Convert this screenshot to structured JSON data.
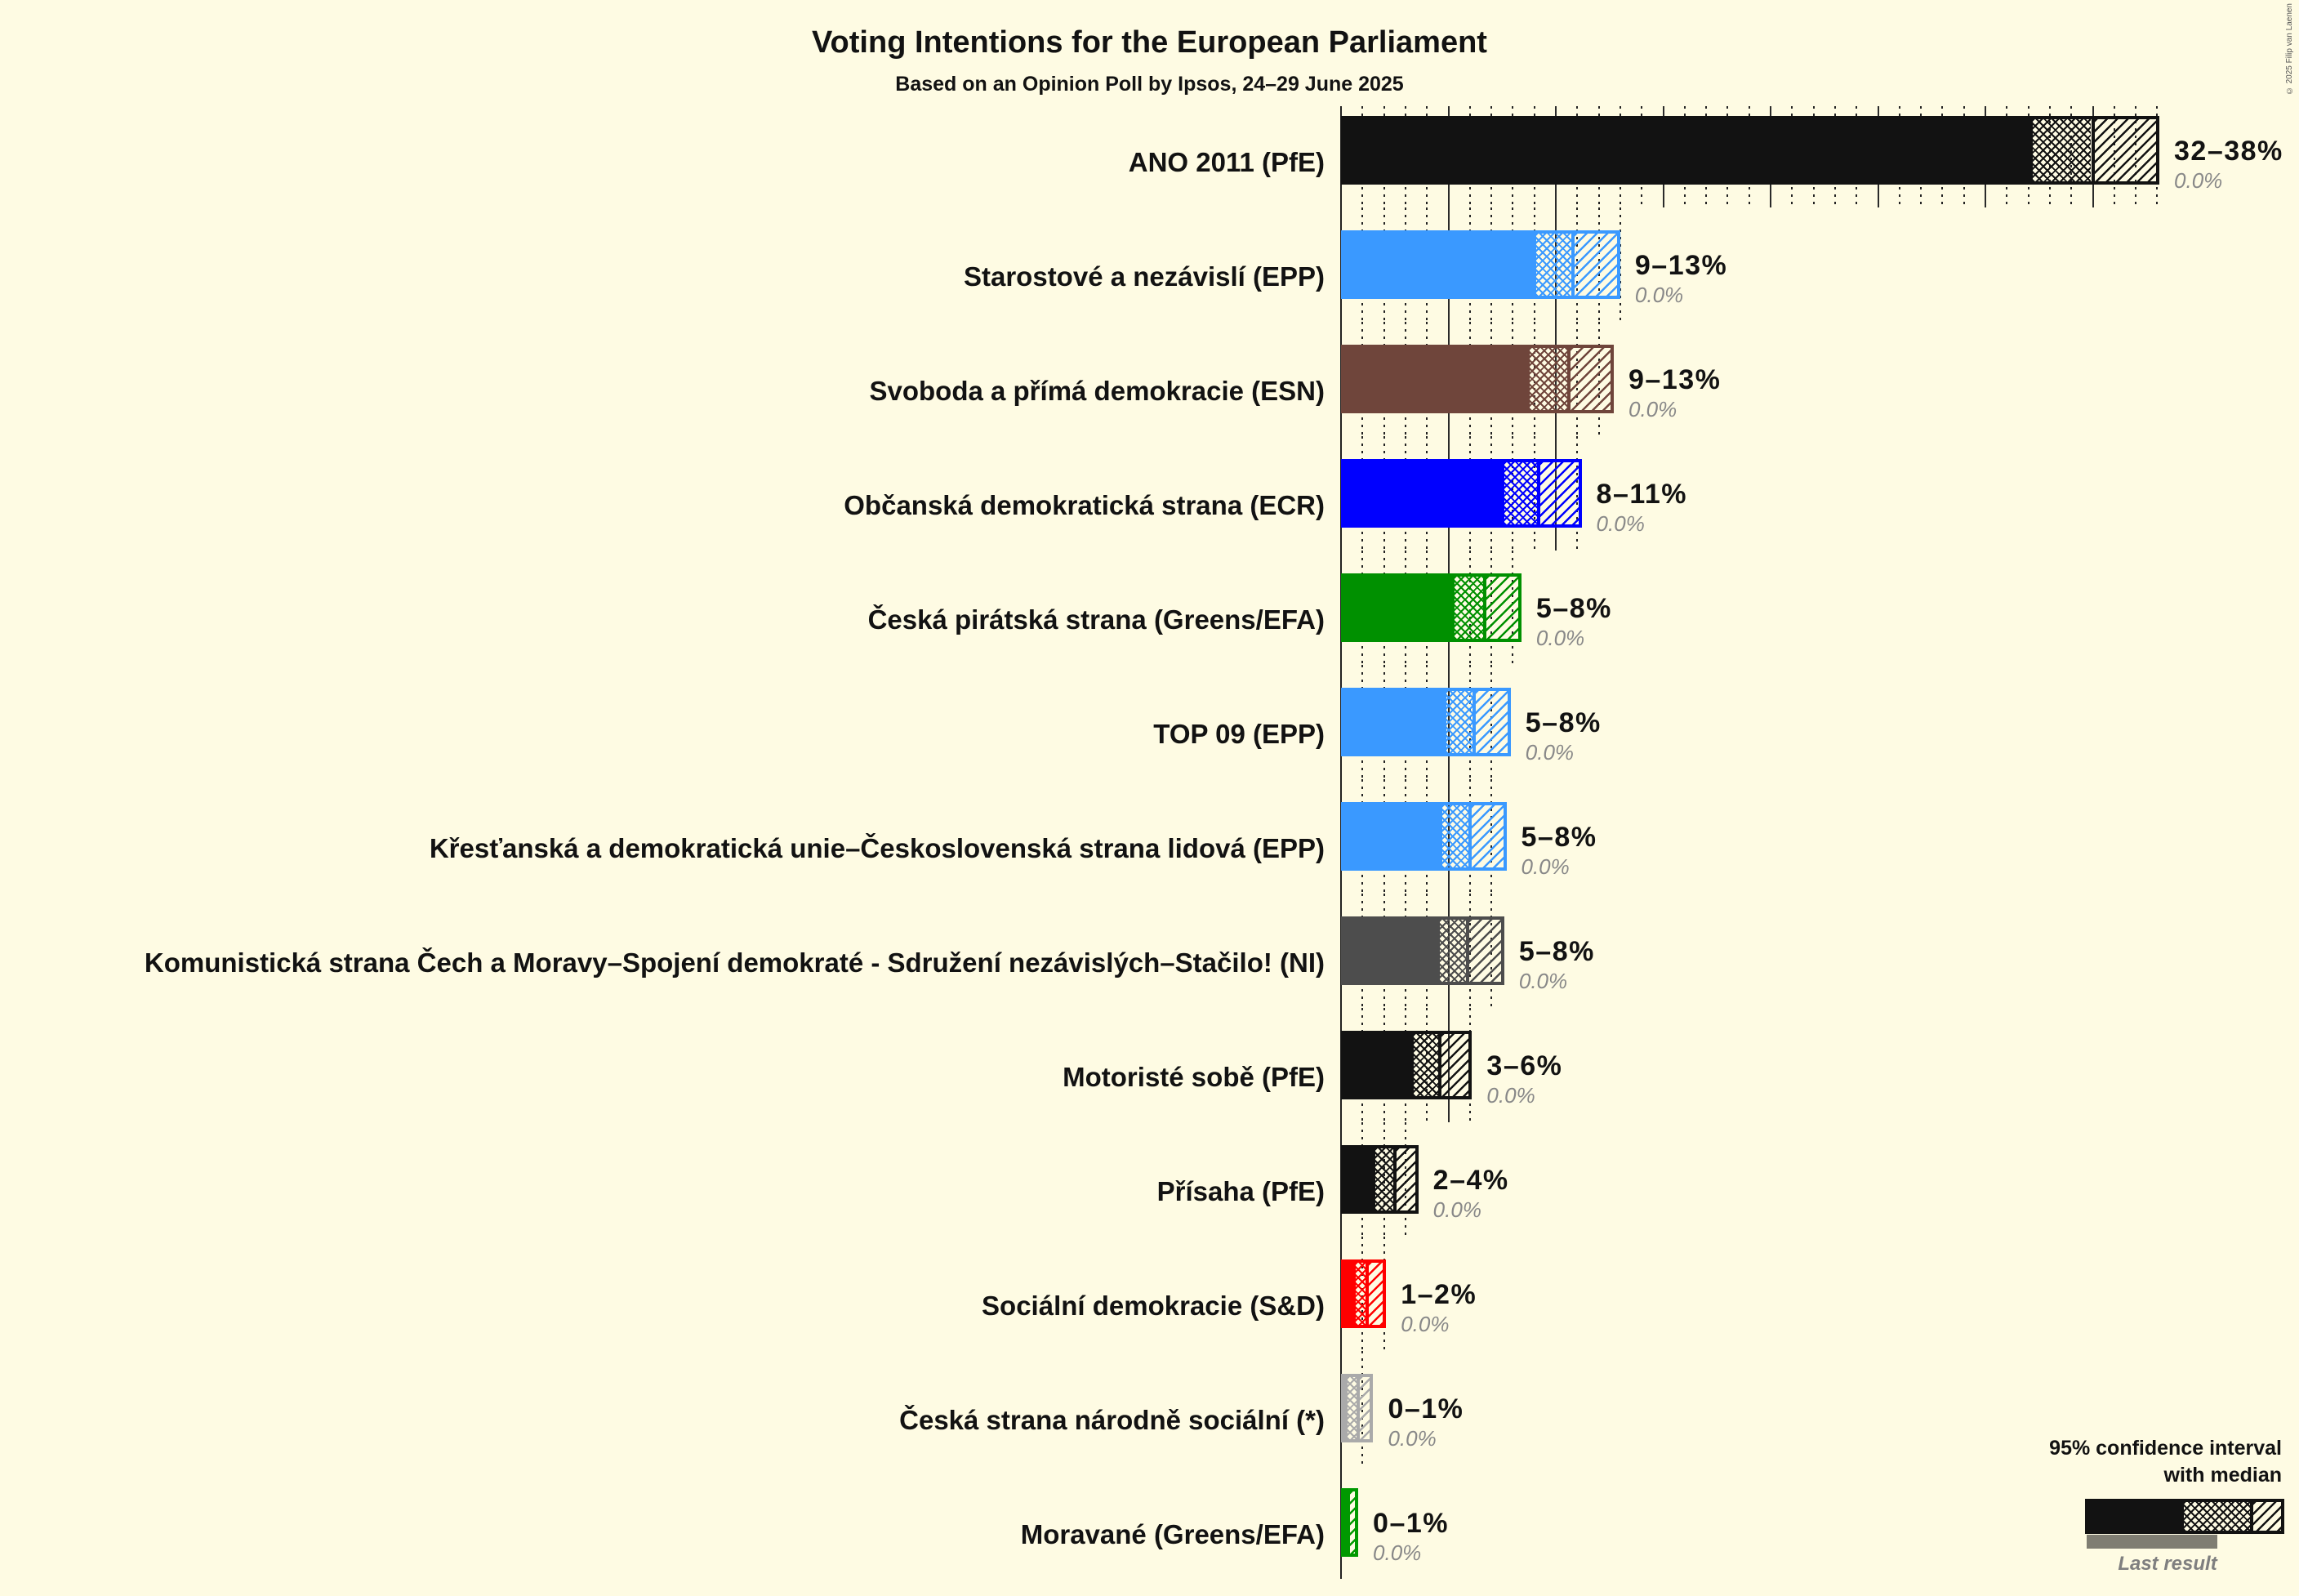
{
  "chart_data": {
    "type": "bar",
    "orientation": "horizontal",
    "title": "Voting Intentions for the European Parliament",
    "subtitle": "Based on an Opinion Poll by Ipsos, 24–29 June 2025",
    "xlabel": "",
    "ylabel": "",
    "xlim": [
      0,
      38
    ],
    "grid": {
      "on": true,
      "major_step": 5,
      "minor_step": 1
    },
    "legend_position": "bottom-right",
    "categories": [
      "ANO 2011 (PfE)",
      "Starostové a nezávislí (EPP)",
      "Svoboda a přímá demokracie (ESN)",
      "Občanská demokratická strana (ECR)",
      "Česká pirátská strana (Greens/EFA)",
      "TOP 09 (EPP)",
      "Křesťanská a demokratická unie–Československá strana lidová (EPP)",
      "Komunistická strana Čech a Moravy–Spojení demokraté - Sdružení nezávislých–Stačilo! (NI)",
      "Motoristé sobě (PfE)",
      "Přísaha (PfE)",
      "Sociální demokracie (S&D)",
      "Česká strana národně sociální (*)",
      "Moravané (Greens/EFA)"
    ],
    "series": [
      {
        "name": "95% CI lower bound",
        "values": [
          32.2,
          9.1,
          8.8,
          7.6,
          5.3,
          4.9,
          4.7,
          4.6,
          3.4,
          1.6,
          0.7,
          0.3,
          0.3
        ]
      },
      {
        "name": "Median",
        "values": [
          35.0,
          10.8,
          10.6,
          9.2,
          6.7,
          6.2,
          6.0,
          5.9,
          4.6,
          2.5,
          1.2,
          0.8,
          0.35
        ]
      },
      {
        "name": "95% CI upper bound",
        "values": [
          38.1,
          13.0,
          12.7,
          11.2,
          8.4,
          7.9,
          7.7,
          7.6,
          6.1,
          3.6,
          2.1,
          1.5,
          0.8
        ]
      },
      {
        "name": "Last result",
        "values": [
          0,
          0,
          0,
          0,
          0,
          0,
          0,
          0,
          0,
          0,
          0,
          0,
          0
        ]
      }
    ],
    "range_labels": [
      "32–38%",
      "9–13%",
      "9–13%",
      "8–11%",
      "5–8%",
      "5–8%",
      "5–8%",
      "5–8%",
      "3–6%",
      "2–4%",
      "1–2%",
      "0–1%",
      "0–1%"
    ],
    "last_result_labels": [
      "0.0%",
      "0.0%",
      "0.0%",
      "0.0%",
      "0.0%",
      "0.0%",
      "0.0%",
      "0.0%",
      "0.0%",
      "0.0%",
      "0.0%",
      "0.0%",
      "0.0%"
    ],
    "colors": [
      "#121212",
      "#3A99FF",
      "#6F453B",
      "#0000FF",
      "#009000",
      "#3A99FF",
      "#3A99FF",
      "#4D4D4D",
      "#121212",
      "#121212",
      "#FF0000",
      "#AAAAAA",
      "#009900"
    ]
  },
  "legend": {
    "title_line1": "95% confidence interval",
    "title_line2": "with median",
    "last_result_label": "Last result",
    "bar_color": "#121212",
    "last_result_color": "#7F7D72"
  },
  "footer": {
    "copyright": "© 2025 Filip van Laenen"
  }
}
